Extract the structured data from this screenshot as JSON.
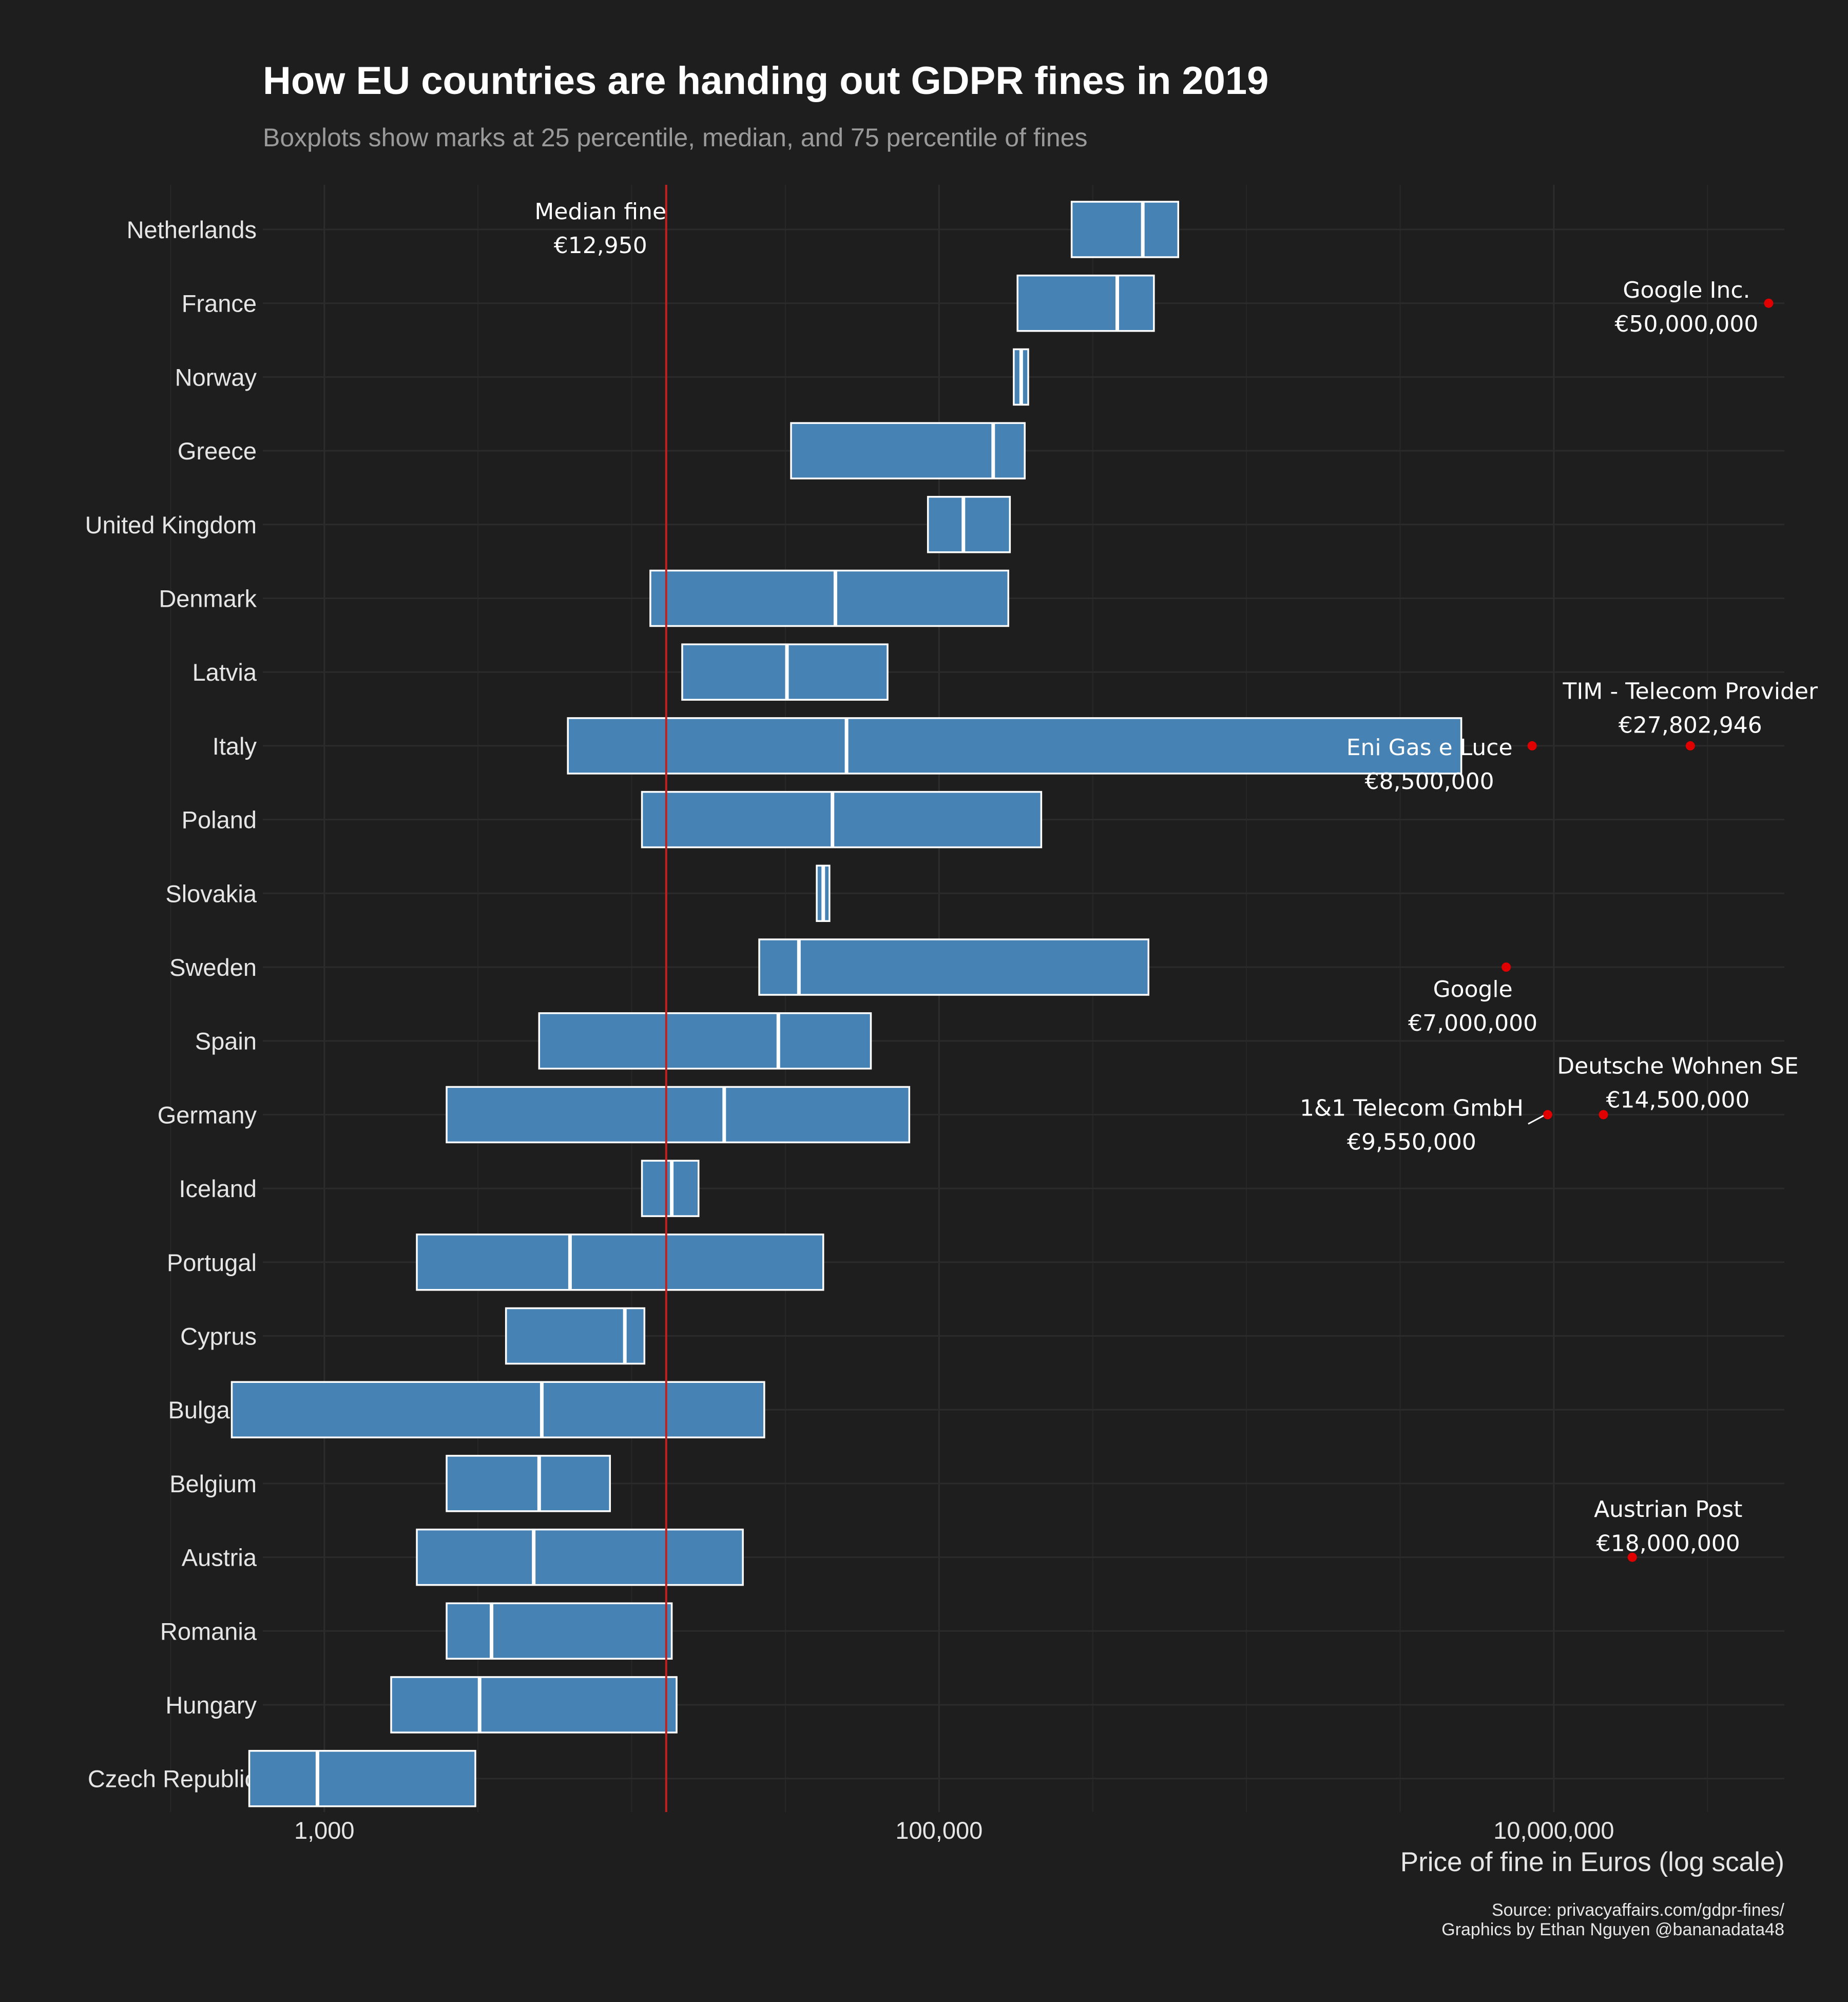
{
  "chart_data": {
    "type": "boxplot",
    "title": "How EU countries are handing out GDPR fines in 2019",
    "subtitle": "Boxplots show marks at 25 percentile, median, and 75 percentile of fines",
    "xlabel": "Price of fine in Euros (log scale)",
    "x_scale": "log10",
    "xlim": [
      100,
      50000000
    ],
    "x_ticks": [
      {
        "value": 1000,
        "label": "1,000"
      },
      {
        "value": 100000,
        "label": "100,000"
      },
      {
        "value": 10000000,
        "label": "10,000,000"
      }
    ],
    "grid": true,
    "box_color": "#4682b4",
    "box_edge_color": "#ffffff",
    "outlier_color": "#e00000",
    "reference_line_color": "#c0201e",
    "categories": [
      "Netherlands",
      "France",
      "Norway",
      "Greece",
      "United Kingdom",
      "Denmark",
      "Latvia",
      "Italy",
      "Poland",
      "Slovakia",
      "Sweden",
      "Spain",
      "Germany",
      "Iceland",
      "Portugal",
      "Cyprus",
      "Bulgaria",
      "Belgium",
      "Austria",
      "Romania",
      "Hungary",
      "Czech Republic"
    ],
    "boxes": [
      {
        "country": "Netherlands",
        "q1": 270000,
        "median": 460000,
        "q3": 600000
      },
      {
        "country": "France",
        "q1": 180000,
        "median": 380000,
        "q3": 500000
      },
      {
        "country": "Norway",
        "q1": 175000,
        "median": 185000,
        "q3": 195000
      },
      {
        "country": "Greece",
        "q1": 33000,
        "median": 150000,
        "q3": 190000
      },
      {
        "country": "United Kingdom",
        "q1": 92000,
        "median": 120000,
        "q3": 170000
      },
      {
        "country": "Denmark",
        "q1": 11500,
        "median": 46000,
        "q3": 168000
      },
      {
        "country": "Latvia",
        "q1": 14600,
        "median": 32000,
        "q3": 68000
      },
      {
        "country": "Italy",
        "q1": 6200,
        "median": 50000,
        "q3": 5000000
      },
      {
        "country": "Poland",
        "q1": 10800,
        "median": 45000,
        "q3": 215000
      },
      {
        "country": "Slovakia",
        "q1": 40000,
        "median": 42000,
        "q3": 44000
      },
      {
        "country": "Sweden",
        "q1": 26000,
        "median": 35000,
        "q3": 480000
      },
      {
        "country": "Spain",
        "q1": 5000,
        "median": 30000,
        "q3": 60000
      },
      {
        "country": "Germany",
        "q1": 2500,
        "median": 20000,
        "q3": 80000
      },
      {
        "country": "Iceland",
        "q1": 10800,
        "median": 13500,
        "q3": 16500
      },
      {
        "country": "Portugal",
        "q1": 2000,
        "median": 6300,
        "q3": 42000
      },
      {
        "country": "Cyprus",
        "q1": 3900,
        "median": 9500,
        "q3": 11000
      },
      {
        "country": "Bulgaria",
        "q1": 500,
        "median": 5100,
        "q3": 27000
      },
      {
        "country": "Belgium",
        "q1": 2500,
        "median": 5000,
        "q3": 8500
      },
      {
        "country": "Austria",
        "q1": 2000,
        "median": 4800,
        "q3": 23000
      },
      {
        "country": "Romania",
        "q1": 2500,
        "median": 3500,
        "q3": 13500
      },
      {
        "country": "Hungary",
        "q1": 1650,
        "median": 3200,
        "q3": 14000
      },
      {
        "country": "Czech Republic",
        "q1": 570,
        "median": 950,
        "q3": 3100
      }
    ],
    "reference_line": {
      "value": 12950,
      "label": "Median fine",
      "value_label": "€12,950"
    },
    "outliers": [
      {
        "country": "France",
        "value": 50000000,
        "name": "Google Inc.",
        "value_label": "€50,000,000",
        "name_dx": -0.32,
        "name_dy": -0.18,
        "value_dy": 0.28
      },
      {
        "country": "Italy",
        "value": 27802946,
        "name": "TIM - Telecom Provider",
        "value_label": "€27,802,946",
        "name_dx": 0.0,
        "name_dy": -0.74,
        "value_dy": -0.28
      },
      {
        "country": "Italy",
        "value": 8500000,
        "name": "Eni Gas e Luce",
        "value_label": "€8,500,000",
        "name_dx": -0.4,
        "name_dy": 0.02,
        "value_dy": 0.48
      },
      {
        "country": "Sweden",
        "value": 7000000,
        "name": "Google",
        "value_label": "€7,000,000",
        "name_dx": -0.13,
        "name_dy": 0.3,
        "value_dy": 0.76
      },
      {
        "country": "Germany",
        "value": 14500000,
        "name": "Deutsche Wohnen SE",
        "value_label": "€14,500,000",
        "name_dx": 0.29,
        "name_dy": -0.66,
        "value_dy": -0.2
      },
      {
        "country": "Germany",
        "value": 9550000,
        "name": "1&1 Telecom GmbH",
        "value_label": "€9,550,000",
        "name_dx": -0.53,
        "name_dy": -0.09,
        "value_dy": 0.37
      },
      {
        "country": "Austria",
        "value": 18000000,
        "name": "Austrian Post",
        "value_label": "€18,000,000",
        "name_dx": 0.14,
        "name_dy": -0.65,
        "value_dy": -0.19
      }
    ],
    "caption": [
      "Source: privacyaffairs.com/gdpr-fines/",
      "Graphics by Ethan Nguyen @bananadata48"
    ]
  }
}
